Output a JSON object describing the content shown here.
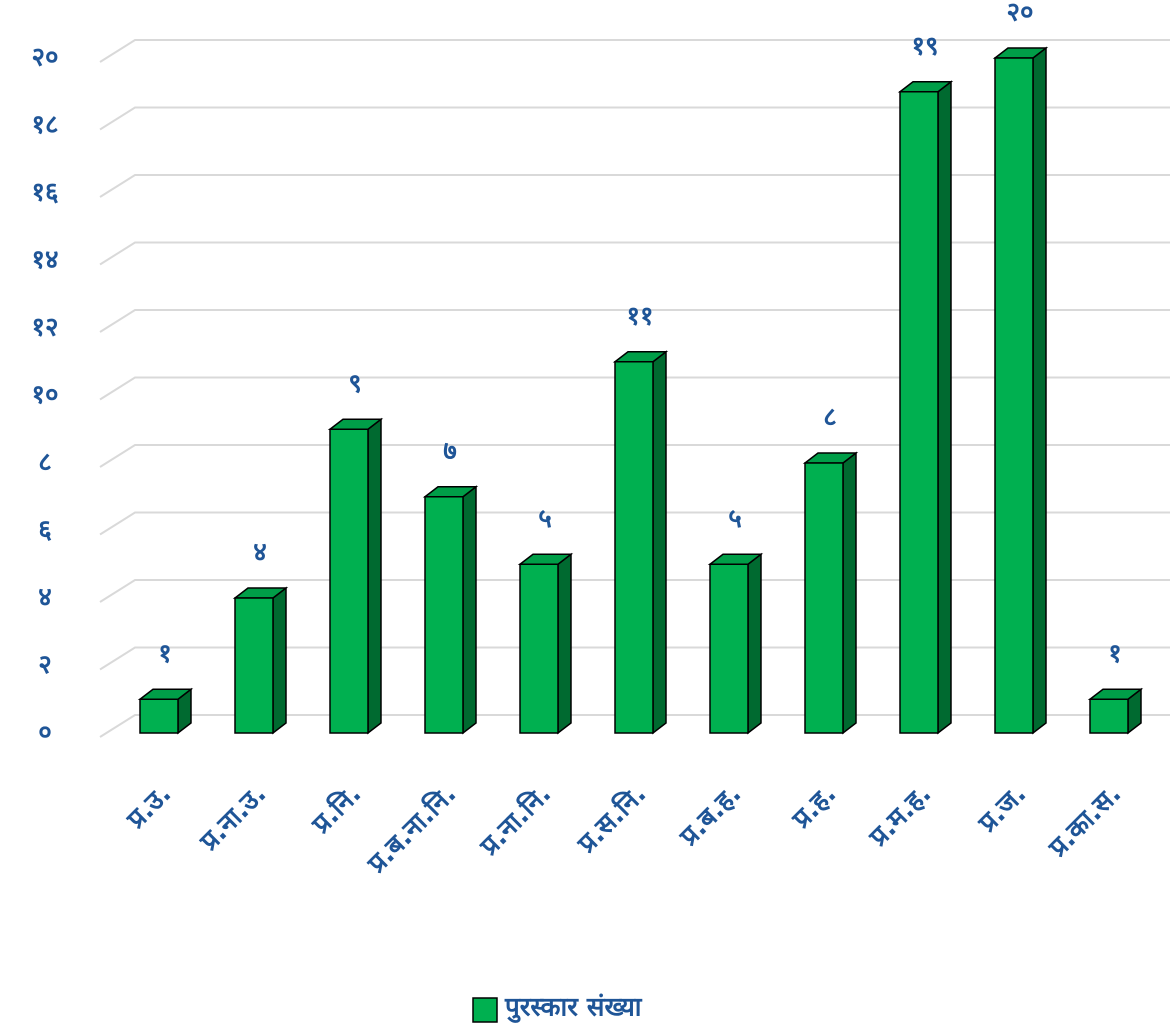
{
  "chart_data": {
    "type": "bar",
    "categories": [
      "प्र.उ.",
      "प्र.ना.उ.",
      "प्र.नि.",
      "प्र.ब.ना.नि.",
      "प्र.ना.नि.",
      "प्र.स.नि.",
      "प्र.ब.ह.",
      "प्र.ह.",
      "प्र.म.ह.",
      "प्र.ज.",
      "प्र.का.स."
    ],
    "series": [
      {
        "name": "पुरस्कार संख्या",
        "color": "#00b050",
        "values": [
          1,
          4,
          9,
          7,
          5,
          11,
          5,
          8,
          19,
          20,
          1
        ],
        "value_labels": [
          "१",
          "४",
          "९",
          "७",
          "५",
          "११",
          "५",
          "८",
          "१९",
          "२०",
          "१"
        ]
      }
    ],
    "ylim": [
      0,
      20
    ],
    "yticks": [
      {
        "value": 0,
        "label": "०"
      },
      {
        "value": 2,
        "label": "२"
      },
      {
        "value": 4,
        "label": "४"
      },
      {
        "value": 6,
        "label": "६"
      },
      {
        "value": 8,
        "label": "८"
      },
      {
        "value": 10,
        "label": "१०"
      },
      {
        "value": 12,
        "label": "१२"
      },
      {
        "value": 14,
        "label": "१४"
      },
      {
        "value": 16,
        "label": "१६"
      },
      {
        "value": 18,
        "label": "१८"
      },
      {
        "value": 20,
        "label": "२०"
      }
    ],
    "grid": true,
    "legend": "bottom"
  }
}
